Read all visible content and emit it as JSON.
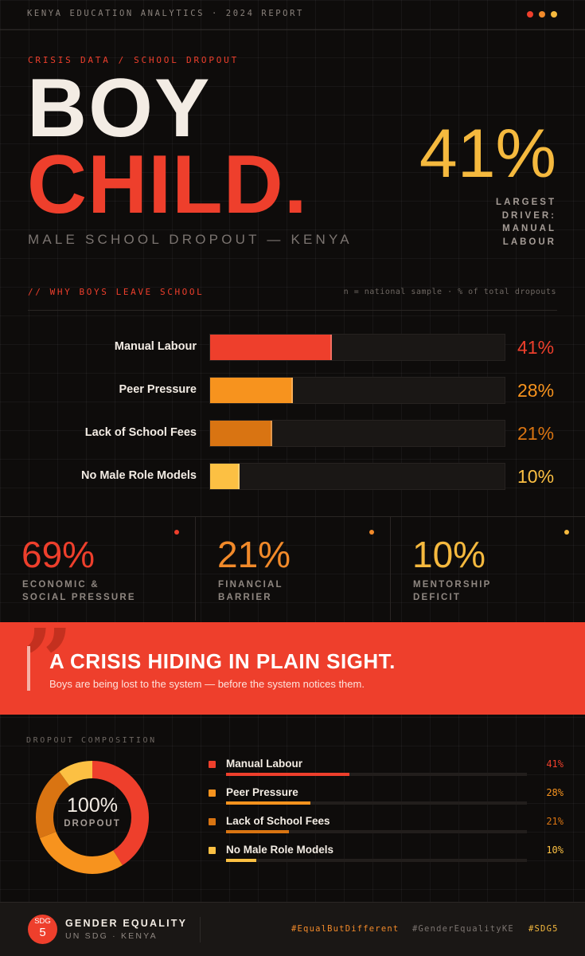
{
  "header": {
    "top_text": "KENYA EDUCATION ANALYTICS  ·  2024 REPORT",
    "dot_colors": [
      "#ee3f2c",
      "#f28a2a",
      "#f5b93e"
    ]
  },
  "hero": {
    "crumb_left": "CRISIS DATA",
    "crumb_sep": "/",
    "crumb_right": "SCHOOL DROPOUT",
    "title_line1": "BOY",
    "title_line2": "CHILD.",
    "subtitle": "MALE SCHOOL DROPOUT — KENYA",
    "big_stat": "41%",
    "big_stat_label": "LARGEST DRIVER: MANUAL LABOUR"
  },
  "section": {
    "heading": "// WHY BOYS LEAVE SCHOOL",
    "note": "n = national sample · % of total dropouts"
  },
  "chart_data": {
    "type": "bar",
    "categories": [
      "Manual Labour",
      "Peer Pressure",
      "Lack of School Fees",
      "No Male Role Models"
    ],
    "values": [
      41,
      28,
      21,
      10
    ],
    "labels": [
      "41%",
      "28%",
      "21%",
      "10%"
    ],
    "colors": [
      "#ee3f2c",
      "#f7931e",
      "#d97412",
      "#fcc043"
    ],
    "xlim": [
      0,
      100
    ],
    "title": "",
    "xlabel": "",
    "ylabel": ""
  },
  "stats": [
    {
      "value": "69%",
      "label_line1": "ECONOMIC &",
      "label_line2": "SOCIAL PRESSURE",
      "color": "#ee3f2c"
    },
    {
      "value": "21%",
      "label_line1": "FINANCIAL",
      "label_line2": "BARRIER",
      "color": "#f28a2a"
    },
    {
      "value": "10%",
      "label_line1": "MENTORSHIP",
      "label_line2": "DEFICIT",
      "color": "#f5b93e"
    }
  ],
  "banner": {
    "quote_glyph": "”",
    "title": "A CRISIS HIDING IN PLAIN SIGHT.",
    "subtitle": "Boys are being lost to the system — before the system notices them."
  },
  "composition": {
    "heading": "DROPOUT COMPOSITION",
    "center_value": "100%",
    "center_label": "DROPOUT",
    "items": [
      {
        "label": "Manual Labour",
        "value": 41,
        "pct": "41%",
        "color": "#ee3f2c"
      },
      {
        "label": "Peer Pressure",
        "value": 28,
        "pct": "28%",
        "color": "#f7931e"
      },
      {
        "label": "Lack of School Fees",
        "value": 21,
        "pct": "21%",
        "color": "#d97412"
      },
      {
        "label": "No Male Role Models",
        "value": 10,
        "pct": "10%",
        "color": "#fcc043"
      }
    ]
  },
  "footer": {
    "sdg_top": "SDG",
    "sdg_num": "5",
    "title": "GENDER EQUALITY",
    "subtitle": "UN SDG · KENYA",
    "tags": [
      {
        "text": "#EqualButDifferent",
        "color": "#f28a2a"
      },
      {
        "text": "#GenderEqualityKE",
        "color": "#7b7470"
      },
      {
        "text": "#SDG5",
        "color": "#f5b93e"
      }
    ]
  }
}
